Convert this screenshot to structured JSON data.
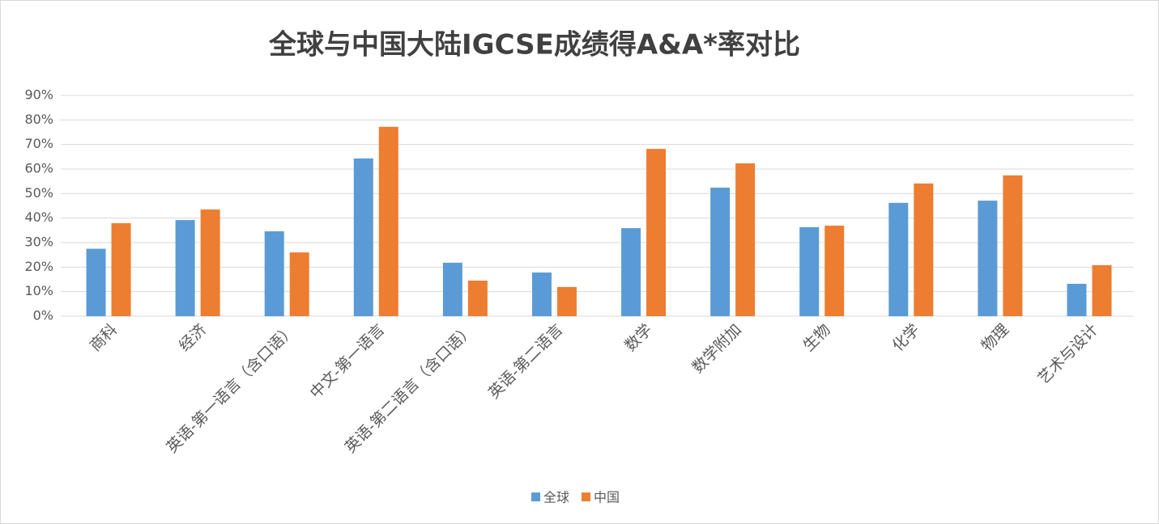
{
  "chart_data": {
    "type": "bar",
    "title": "全球与中国大陆IGCSE成绩得A&A*率对比",
    "categories": [
      "商科",
      "经济",
      "英语-第一语言（含口语）",
      "中文-第一语言",
      "英语-第二语言（含口语）",
      "英语-第二语言",
      "数学",
      "数学附加",
      "生物",
      "化学",
      "物理",
      "艺术与设计"
    ],
    "series": [
      {
        "name": "全球",
        "color": "#5b9bd5",
        "values": [
          27.5,
          39.2,
          34.6,
          64.3,
          21.8,
          17.8,
          35.9,
          52.4,
          36.3,
          46.2,
          47.1,
          13.2
        ]
      },
      {
        "name": "中国",
        "color": "#ed7d31",
        "values": [
          37.9,
          43.5,
          26.0,
          77.2,
          14.5,
          11.9,
          68.2,
          62.3,
          36.9,
          54.1,
          57.4,
          20.8
        ]
      }
    ],
    "ylim": [
      0,
      90
    ],
    "yticks": [
      {
        "value": 0,
        "label": "0%"
      },
      {
        "value": 10,
        "label": "10%"
      },
      {
        "value": 20,
        "label": "20%"
      },
      {
        "value": 30,
        "label": "30%"
      },
      {
        "value": 40,
        "label": "40%"
      },
      {
        "value": 50,
        "label": "50%"
      },
      {
        "value": 60,
        "label": "60%"
      },
      {
        "value": 70,
        "label": "70%"
      },
      {
        "value": 80,
        "label": "80%"
      },
      {
        "value": 90,
        "label": "90%"
      }
    ],
    "grid": true,
    "legend": "bottom"
  }
}
